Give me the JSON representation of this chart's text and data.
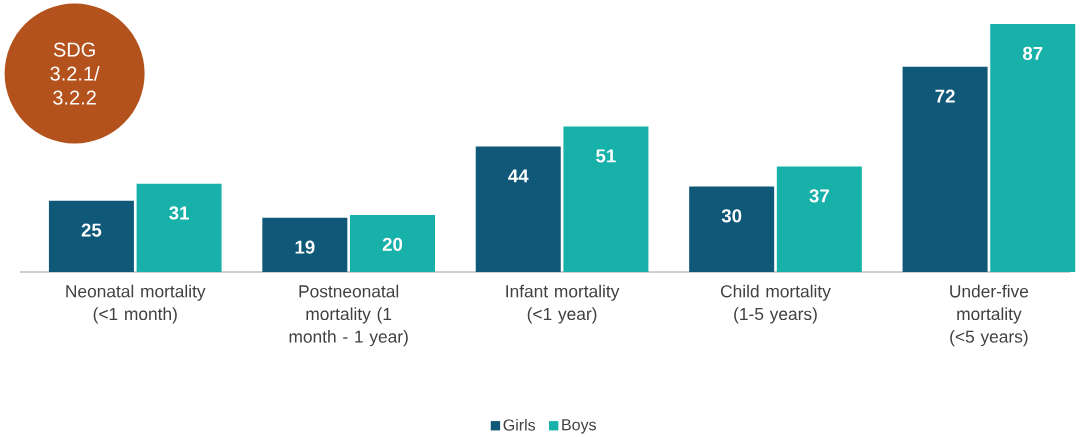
{
  "chart_data": {
    "type": "bar",
    "categories": [
      "Neonatal mortality (<1 month)",
      "Postneonatal mortality (1 month - 1 year)",
      "Infant mortality (<1 year)",
      "Child mortality (1-5 years)",
      "Under-five mortality (<5 years)"
    ],
    "series": [
      {
        "name": "Girls",
        "color": "#0f5878",
        "values": [
          25,
          19,
          44,
          30,
          72
        ]
      },
      {
        "name": "Boys",
        "color": "#17b1aa",
        "values": [
          31,
          20,
          51,
          37,
          87
        ]
      }
    ],
    "data_labels": true,
    "legend": "bottom",
    "annotations": [
      "SDG 3.2.1/ 3.2.2"
    ]
  }
}
